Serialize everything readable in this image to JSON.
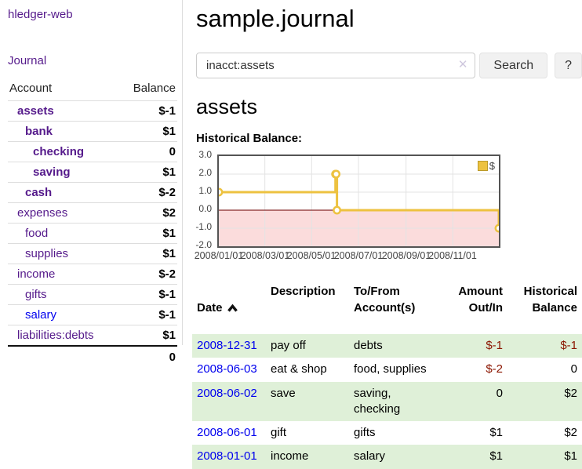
{
  "app": {
    "brand": "hledger-web",
    "nav_journal": "Journal"
  },
  "sidebar": {
    "header": {
      "account": "Account",
      "balance": "Balance"
    },
    "accounts": [
      {
        "name": "assets",
        "indent": 1,
        "balance": "$-1",
        "in_acct": true,
        "balance_class": "neg-strong"
      },
      {
        "name": "bank",
        "indent": 2,
        "balance": "$1",
        "in_acct": true
      },
      {
        "name": "checking",
        "indent": 3,
        "balance": "0",
        "in_acct": true
      },
      {
        "name": "saving",
        "indent": 3,
        "balance": "$1",
        "in_acct": true
      },
      {
        "name": "cash",
        "indent": 2,
        "balance": "$-2",
        "in_acct": true,
        "balance_class": "neg-strong"
      },
      {
        "name": "expenses",
        "indent": 1,
        "balance": "$2"
      },
      {
        "name": "food",
        "indent": 2,
        "balance": "$1"
      },
      {
        "name": "supplies",
        "indent": 2,
        "balance": "$1"
      },
      {
        "name": "income",
        "indent": 1,
        "balance": "$-2",
        "balance_class": "neg-muted"
      },
      {
        "name": "gifts",
        "indent": 2,
        "balance": "$-1",
        "balance_class": "neg-muted"
      },
      {
        "name": "salary",
        "indent": 2,
        "balance": "$-1",
        "balance_class": "neg-muted",
        "link_color": "blue"
      },
      {
        "name": "liabilities:debts",
        "indent": 1,
        "balance": "$1"
      }
    ],
    "total": "0"
  },
  "header": {
    "title": "sample.journal"
  },
  "search": {
    "value": "inacct:assets",
    "clear_icon": "✕",
    "button": "Search",
    "help_button": "?"
  },
  "account_page": {
    "heading": "assets",
    "chart_label": "Historical Balance:"
  },
  "chart_data": {
    "type": "line",
    "title": "Historical Balance:",
    "series": [
      {
        "name": "$",
        "color": "#edc240",
        "steps": true,
        "points": [
          [
            "2008-01-01",
            1
          ],
          [
            "2008-06-01",
            2
          ],
          [
            "2008-06-02",
            2
          ],
          [
            "2008-06-03",
            0
          ],
          [
            "2008-12-31",
            -1
          ]
        ]
      }
    ],
    "xrange": [
      "2008-01-01",
      "2008-12-31"
    ],
    "ylim": [
      -2,
      3
    ],
    "yticks": [
      "3.0",
      "2.0",
      "1.0",
      "0.0",
      "-1.0",
      "-2.0"
    ],
    "xticks": [
      {
        "t": "2008-01-01",
        "label": "2008/01/01"
      },
      {
        "t": "2008-03-01",
        "label": "2008/03/01"
      },
      {
        "t": "2008-05-01",
        "label": "2008/05/01"
      },
      {
        "t": "2008-07-01",
        "label": "2008/07/01"
      },
      {
        "t": "2008-09-01",
        "label": "2008/09/01"
      },
      {
        "t": "2008-11-01",
        "label": "2008/11/01"
      }
    ],
    "grid": true,
    "legend": "$",
    "legend_position": "top-right",
    "zero_line_color": "#872a2a",
    "negative_region_color": "#fbdcdc",
    "gridline_color": "#e3e3e3"
  },
  "register": {
    "columns": [
      {
        "label": "Date",
        "align": "left",
        "sorted": "asc"
      },
      {
        "label": "Description",
        "align": "left"
      },
      {
        "label": "To/From\nAccount(s)",
        "align": "left"
      },
      {
        "label": "Amount\nOut/In",
        "align": "right"
      },
      {
        "label": "Historical\nBalance",
        "align": "right"
      }
    ],
    "rows": [
      {
        "date": "2008-12-31",
        "description": "pay off",
        "accounts": "debts",
        "amount": "$-1",
        "balance": "$-1",
        "amount_negative": true,
        "balance_negative": true
      },
      {
        "date": "2008-06-03",
        "description": "eat & shop",
        "accounts": "food, supplies",
        "amount": "$-2",
        "balance": "0",
        "amount_negative": true
      },
      {
        "date": "2008-06-02",
        "description": "save",
        "accounts": "saving,\nchecking",
        "amount": "0",
        "balance": "$2"
      },
      {
        "date": "2008-06-01",
        "description": "gift",
        "accounts": "gifts",
        "amount": "$1",
        "balance": "$2"
      },
      {
        "date": "2008-01-01",
        "description": "income",
        "accounts": "salary",
        "amount": "$1",
        "balance": "$1"
      }
    ]
  },
  "colors": {
    "link_purple": "#551a8b",
    "link_blue": "#0000ee",
    "negative_strong": "#a41414",
    "negative_muted": "#bf7070",
    "register_negative": "#8b1500",
    "row_stripe_green": "#dff0d8",
    "chart_line_gold": "#edc240",
    "chart_negative_fill": "#fbdcdc",
    "chart_zero_line": "#872a2a",
    "chart_border": "#545454"
  }
}
